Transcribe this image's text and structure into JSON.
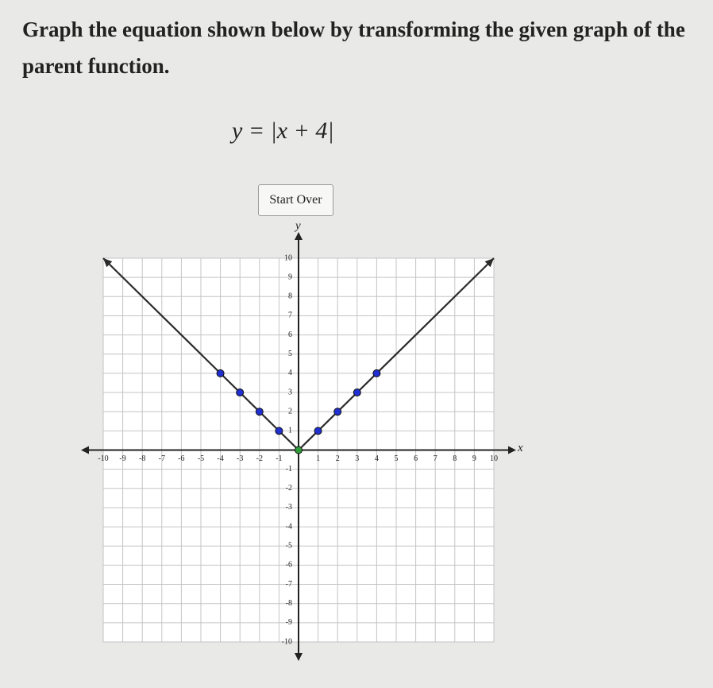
{
  "instruction": "Graph the equation shown below by transforming the given graph of the parent function.",
  "equation": "y = |x + 4|",
  "button": "Start Over",
  "chart_data": {
    "type": "line",
    "xlabel": "x",
    "ylabel": "y",
    "xlim": [
      -10,
      10
    ],
    "ylim": [
      -10,
      10
    ],
    "xticks": [
      -10,
      -9,
      -8,
      -7,
      -6,
      -5,
      -4,
      -3,
      -2,
      -1,
      1,
      2,
      3,
      4,
      5,
      6,
      7,
      8,
      9,
      10
    ],
    "yticks": [
      -10,
      -9,
      -8,
      -7,
      -6,
      -5,
      -4,
      -3,
      -2,
      -1,
      1,
      2,
      3,
      4,
      5,
      6,
      7,
      8,
      9,
      10
    ],
    "grid": true,
    "line": {
      "x": [
        -10,
        0,
        10
      ],
      "values": [
        10,
        0,
        10
      ],
      "color": "#2b2b2b"
    },
    "points": [
      {
        "x": [
          -4,
          -3,
          -2,
          -1,
          1,
          2,
          3,
          4
        ],
        "values": [
          4,
          3,
          2,
          1,
          1,
          2,
          3,
          4
        ],
        "color": "#1f2fd0"
      },
      {
        "x": [
          0
        ],
        "values": [
          0
        ],
        "color": "#2f9a3a"
      }
    ]
  }
}
